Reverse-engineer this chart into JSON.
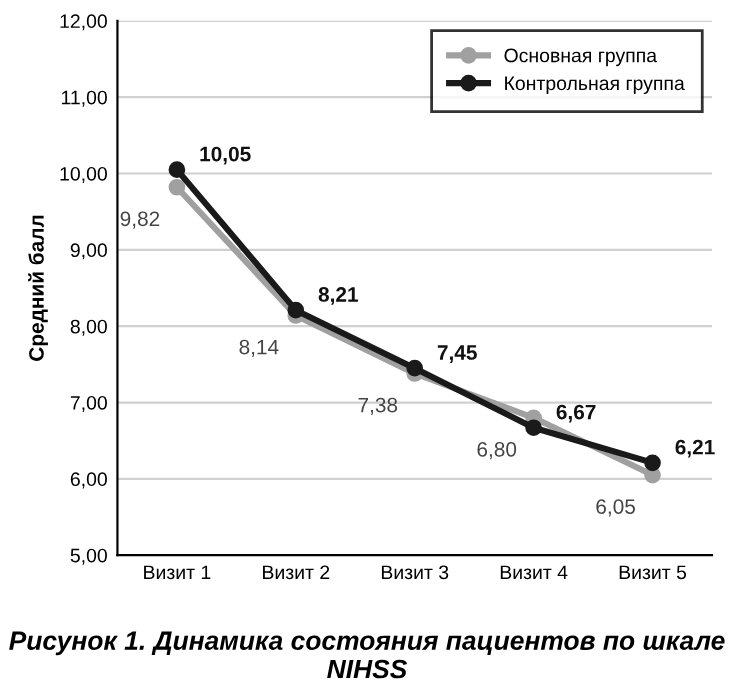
{
  "chart_data": {
    "type": "line",
    "title": "Рисунок 1. Динамика состояния пациентов по шкале NIHSS",
    "ylabel": "Средний балл",
    "categories": [
      "Визит 1",
      "Визит 2",
      "Визит 3",
      "Визит 4",
      "Визит 5"
    ],
    "series": [
      {
        "name": "Основная группа",
        "color": "#a0a0a0",
        "values": [
          9.82,
          8.14,
          7.38,
          6.8,
          6.05
        ],
        "value_labels": [
          "9,82",
          "8,14",
          "7,38",
          "6,80",
          "6,05"
        ]
      },
      {
        "name": "Контрольная группа",
        "color": "#1a1a1a",
        "values": [
          10.05,
          8.21,
          7.45,
          6.67,
          6.21
        ],
        "value_labels": [
          "10,05",
          "8,21",
          "7,45",
          "6,67",
          "6,21"
        ]
      }
    ],
    "ylim": [
      5,
      12
    ],
    "yticks": [
      {
        "value": 5,
        "label": "5,00"
      },
      {
        "value": 6,
        "label": "6,00"
      },
      {
        "value": 7,
        "label": "7,00"
      },
      {
        "value": 8,
        "label": "8,00"
      },
      {
        "value": 9,
        "label": "9,00"
      },
      {
        "value": 10,
        "label": "10,00"
      },
      {
        "value": 11,
        "label": "11,00"
      },
      {
        "value": 12,
        "label": "12,00"
      }
    ],
    "grid": "y",
    "legend": "top right",
    "marker": "circle",
    "line_style": "solid"
  }
}
